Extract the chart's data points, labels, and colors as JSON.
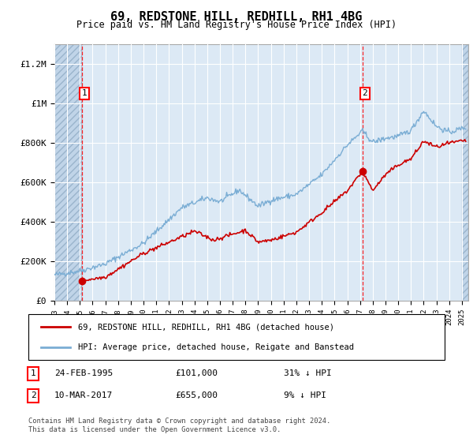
{
  "title": "69, REDSTONE HILL, REDHILL, RH1 4BG",
  "subtitle": "Price paid vs. HM Land Registry's House Price Index (HPI)",
  "ylim": [
    0,
    1300000
  ],
  "xlim_start": 1993.0,
  "xlim_end": 2025.5,
  "hpi_color": "#7aadd4",
  "price_color": "#cc0000",
  "marker_color": "#cc0000",
  "sale1_x": 1995.14,
  "sale1_y": 101000,
  "sale1_label": "1",
  "sale2_x": 2017.19,
  "sale2_y": 655000,
  "sale2_label": "2",
  "vline1_x": 1995.14,
  "vline2_x": 2017.19,
  "legend_line1": "69, REDSTONE HILL, REDHILL, RH1 4BG (detached house)",
  "legend_line2": "HPI: Average price, detached house, Reigate and Banstead",
  "ann1_label": "1",
  "ann1_date": "24-FEB-1995",
  "ann1_price": "£101,000",
  "ann1_hpi": "31% ↓ HPI",
  "ann2_label": "2",
  "ann2_date": "10-MAR-2017",
  "ann2_price": "£655,000",
  "ann2_hpi": "9% ↓ HPI",
  "footnote": "Contains HM Land Registry data © Crown copyright and database right 2024.\nThis data is licensed under the Open Government Licence v3.0.",
  "background_plot": "#dce9f5",
  "background_hatch": "#c0d4e8",
  "grid_color": "#ffffff",
  "hatch_start": 1993.0,
  "hatch1_end": 1995.14,
  "hatch2_start": 2025.0,
  "hatch2_end": 2025.5
}
